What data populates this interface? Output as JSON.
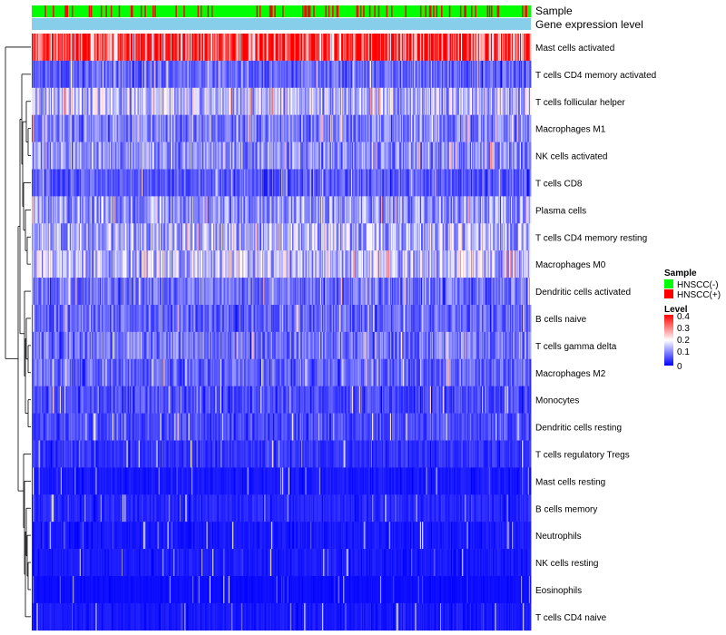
{
  "chart_data": {
    "type": "heatmap",
    "title": "",
    "annotation_tracks": [
      {
        "name": "Sample",
        "label": "Sample"
      },
      {
        "name": "Gene expression level",
        "label": "Gene expression level"
      }
    ],
    "rows": [
      "Mast cells activated",
      "T cells CD4 memory activated",
      "T cells follicular helper",
      "Macrophages M1",
      "NK cells activated",
      "T cells CD8",
      "Plasma cells",
      "T cells CD4 memory resting",
      "Macrophages M0",
      "Dendritic cells activated",
      "B cells naive",
      "T cells gamma delta",
      "Macrophages M2",
      "Monocytes",
      "Dendritic cells resting",
      "T cells regulatory  Tregs",
      "Mast cells resting",
      "B cells memory",
      "Neutrophils",
      "NK cells resting",
      "Eosinophils",
      "T cells CD4 naive"
    ],
    "row_typical_levels": [
      0.38,
      0.08,
      0.15,
      0.1,
      0.11,
      0.07,
      0.12,
      0.14,
      0.15,
      0.09,
      0.08,
      0.09,
      0.08,
      0.06,
      0.06,
      0.04,
      0.02,
      0.03,
      0.02,
      0.02,
      0.01,
      0.02
    ],
    "num_samples": 500,
    "level_range": [
      0,
      0.4
    ],
    "legend": {
      "sample_title": "Sample",
      "sample_entries": [
        {
          "label": "HNSCC(-)",
          "color": "#00FF00"
        },
        {
          "label": "HNSCC(+)",
          "color": "#FF0000"
        }
      ],
      "level_title": "Level",
      "level_ticks": [
        "0.4",
        "0.3",
        "0.2",
        "0.1",
        "0"
      ]
    },
    "colors": {
      "low": "#0000FF",
      "mid": "#FFFFFF",
      "high": "#FF0000",
      "gene_track": "#87CEEB"
    }
  }
}
